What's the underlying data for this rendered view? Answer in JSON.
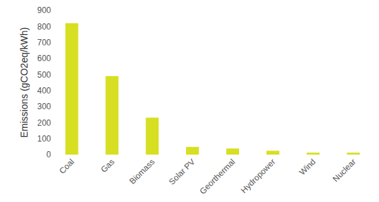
{
  "chart_data": {
    "type": "bar",
    "y_label": "Emissions (gCO2eq/kWh)",
    "categories": [
      "Coal",
      "Gas",
      "Biomass",
      "Solar PV",
      "Georthermal",
      "Hydropower",
      "Wind",
      "Nuclear"
    ],
    "values": [
      820,
      490,
      230,
      48,
      38,
      24,
      12,
      12
    ],
    "color": "#d7df23",
    "ylim": [
      0,
      900
    ],
    "yticks": [
      0,
      100,
      200,
      300,
      400,
      500,
      600,
      700,
      800,
      900
    ],
    "grid": false
  }
}
